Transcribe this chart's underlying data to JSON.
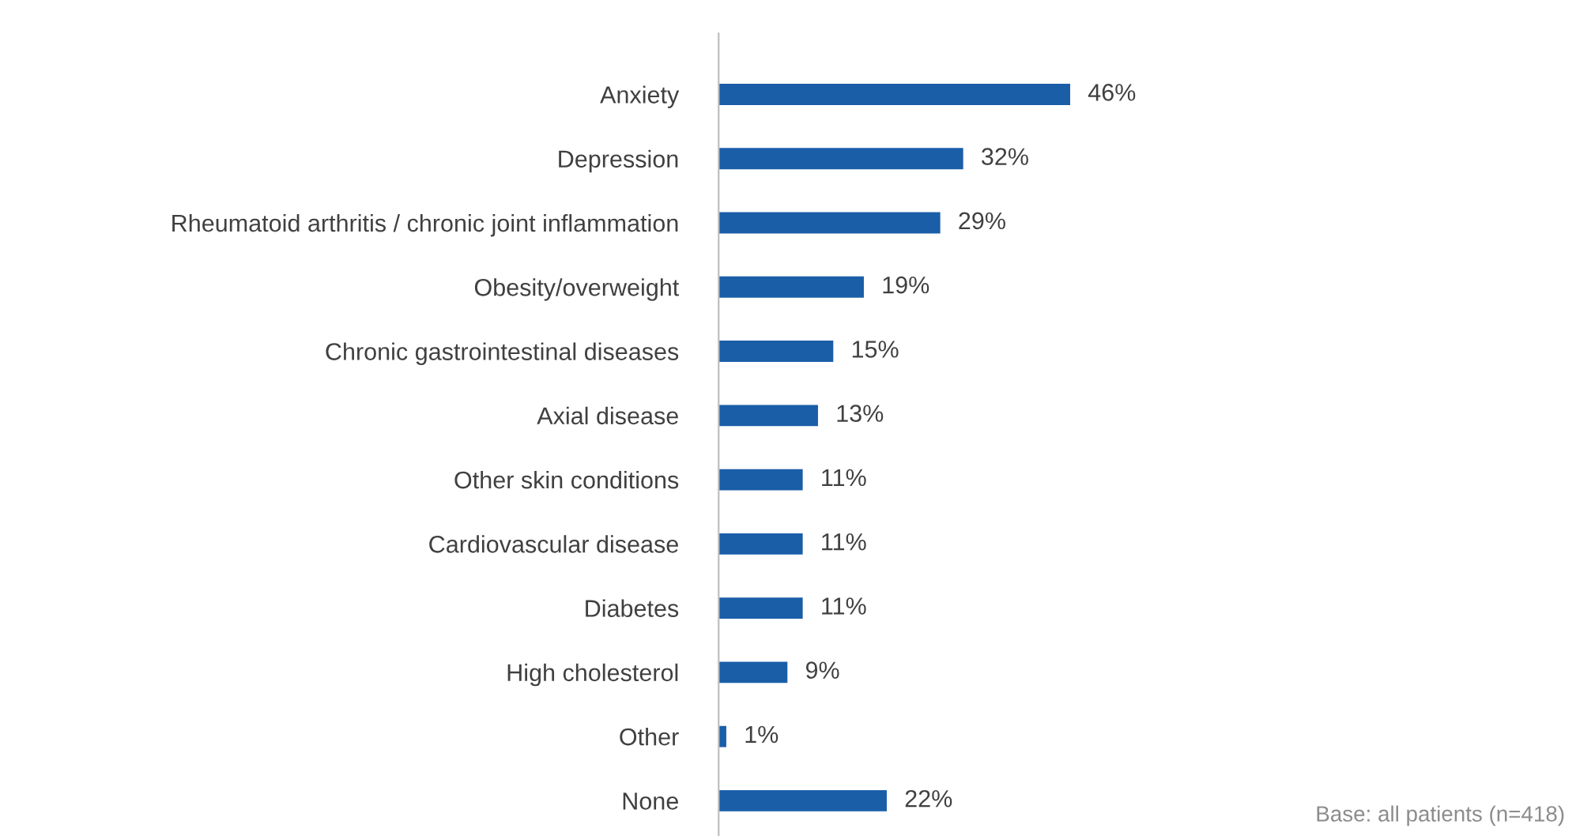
{
  "chart_data": {
    "type": "bar",
    "orientation": "horizontal",
    "categories": [
      "Anxiety",
      "Depression",
      "Rheumatoid arthritis / chronic joint inflammation",
      "Obesity/overweight",
      "Chronic gastrointestinal diseases",
      "Axial disease",
      "Other skin conditions",
      "Cardiovascular disease",
      "Diabetes",
      "High cholesterol",
      "Other",
      "None"
    ],
    "values": [
      46,
      32,
      29,
      19,
      15,
      13,
      11,
      11,
      11,
      9,
      1,
      22
    ],
    "value_labels": [
      "46%",
      "32%",
      "29%",
      "19%",
      "15%",
      "13%",
      "11%",
      "11%",
      "11%",
      "9%",
      "1%",
      "22%"
    ],
    "color": "#1a5ea8",
    "annotations": [
      "Base: all patients (n=418)"
    ],
    "grid": false,
    "legend": false
  }
}
